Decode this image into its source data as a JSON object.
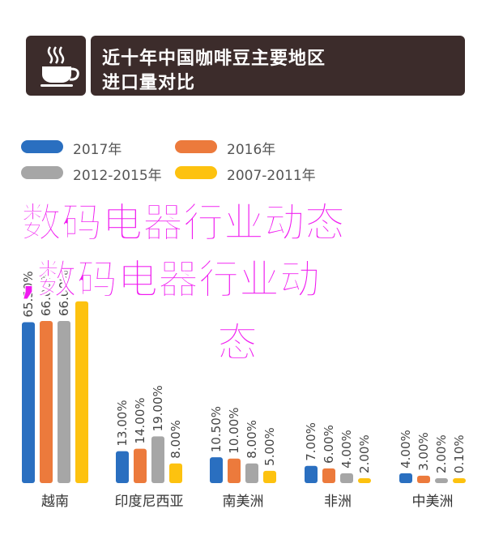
{
  "header": {
    "title_line1": "近十年中国咖啡豆主要地区",
    "title_line2": "进口量对比",
    "icon": "coffee-cup-icon"
  },
  "overlay": {
    "line1": "数码电器行业动态",
    "line2": ",数码电器行业动",
    "line3": "态"
  },
  "colors": {
    "header_bg": "#3c2c2b",
    "overlay_text": "#f01af0",
    "series": [
      "#2a6fc0",
      "#ec7a3c",
      "#a6a6a6",
      "#fdc20f"
    ]
  },
  "chart_data": {
    "type": "bar",
    "categories": [
      "越南",
      "印度尼西亚",
      "南美洲",
      "非洲",
      "中美洲"
    ],
    "series": [
      {
        "name": "2017年",
        "values": [
          65.5,
          13.0,
          10.5,
          7.0,
          4.0
        ],
        "labels": [
          "65.50%",
          "13.00%",
          "10.50%",
          "7.00%",
          "4.00%"
        ]
      },
      {
        "name": "2016年",
        "values": [
          66.0,
          14.0,
          10.0,
          6.0,
          3.0
        ],
        "labels": [
          "66.00%",
          "14.00%",
          "10.00%",
          "6.00%",
          "3.00%"
        ]
      },
      {
        "name": "2012-2015年",
        "values": [
          66.0,
          19.0,
          8.0,
          4.0,
          2.0
        ],
        "labels": [
          "66.00%",
          "19.00%",
          "8.00%",
          "4.00%",
          "2.00%"
        ]
      },
      {
        "name": "2007-2011年",
        "values": [
          74.0,
          8.0,
          5.0,
          2.0,
          0.1
        ],
        "labels": [
          "",
          "8.00%",
          "5.00%",
          "2.00%",
          "0.10%"
        ]
      }
    ],
    "legend_placement": "top-left",
    "grid": false
  }
}
